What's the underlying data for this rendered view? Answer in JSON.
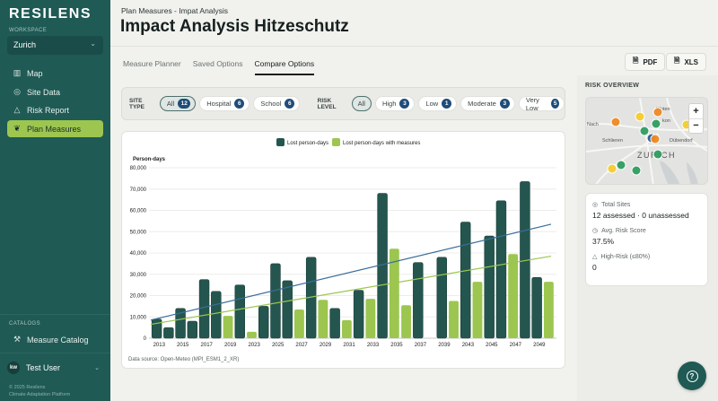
{
  "app": {
    "logo": "RESILENS"
  },
  "sidebar": {
    "workspace_label": "WORKSPACE",
    "workspace_value": "Zurich",
    "items": [
      {
        "label": "Map",
        "icon": "map-icon"
      },
      {
        "label": "Site Data",
        "icon": "location-pin-icon"
      },
      {
        "label": "Risk Report",
        "icon": "warning-triangle-icon"
      },
      {
        "label": "Plan Measures",
        "icon": "leaf-icon",
        "active": true
      }
    ],
    "catalog_label": "CATALOGS",
    "catalog_item": {
      "label": "Measure Catalog",
      "icon": "wrench-icon"
    },
    "user": {
      "initials": "kw",
      "name": "Test User"
    },
    "footer_line1": "© 2025 Resilens",
    "footer_line2": "Climate Adaptation Platform"
  },
  "header": {
    "breadcrumb": "Plan Measures - Impat Analysis",
    "title": "Impact Analysis Hitzeschutz",
    "tabs": [
      {
        "label": "Measure Planner",
        "active": false
      },
      {
        "label": "Saved Options",
        "active": false
      },
      {
        "label": "Compare Options",
        "active": true
      }
    ],
    "export_pdf": "PDF",
    "export_xls": "XLS"
  },
  "filters": {
    "site_type_label": "SITE TYPE",
    "site_type": [
      {
        "label": "All",
        "count": "12",
        "selected": true
      },
      {
        "label": "Hospital",
        "count": "6",
        "selected": false
      },
      {
        "label": "School",
        "count": "6",
        "selected": false
      }
    ],
    "risk_level_label": "RISK LEVEL",
    "risk_level": [
      {
        "label": "All",
        "selected": true
      },
      {
        "label": "High",
        "count": "3"
      },
      {
        "label": "Low",
        "count": "1"
      },
      {
        "label": "Moderate",
        "count": "3"
      },
      {
        "label": "Very Low",
        "count": "5"
      }
    ]
  },
  "chart_data": {
    "type": "bar",
    "title": "",
    "xlabel": "",
    "ylabel": "Person-days",
    "ylim": [
      0,
      80000
    ],
    "yticks": [
      0,
      10000,
      20000,
      30000,
      40000,
      50000,
      60000,
      70000,
      80000
    ],
    "ytick_labels": [
      "0",
      "10,000",
      "20,000",
      "30,000",
      "40,000",
      "50,000",
      "60,000",
      "70,000",
      "80,000"
    ],
    "grid": true,
    "legend_position": "top-right",
    "colors": {
      "lost": "#24564f",
      "with_measures": "#9cc64f",
      "trend_lost": "#3a6d9a",
      "trend_with_measures": "#9cc64f"
    },
    "series": [
      {
        "name": "Lost person-days",
        "key": "lost"
      },
      {
        "name": "Lost person-days with measures",
        "key": "with_measures"
      }
    ],
    "x_labels": [
      "2013",
      "2015",
      "2017",
      "2019",
      "2023",
      "2025",
      "2027",
      "2029",
      "2031",
      "2033",
      "2035",
      "2037",
      "2039",
      "2043",
      "2045",
      "2047",
      "2049"
    ],
    "bars": [
      {
        "series": "lost",
        "value": 9000
      },
      {
        "series": "lost",
        "value": 5000
      },
      {
        "series": "lost",
        "value": 14000
      },
      {
        "series": "lost",
        "value": 8000
      },
      {
        "series": "lost",
        "value": 27500
      },
      {
        "series": "lost",
        "value": 22000
      },
      {
        "series": "with_measures",
        "value": 10500
      },
      {
        "series": "lost",
        "value": 25000
      },
      {
        "series": "with_measures",
        "value": 3000
      },
      {
        "series": "lost",
        "value": 15000
      },
      {
        "series": "lost",
        "value": 35000
      },
      {
        "series": "lost",
        "value": 27000
      },
      {
        "series": "with_measures",
        "value": 13500
      },
      {
        "series": "lost",
        "value": 38000
      },
      {
        "series": "with_measures",
        "value": 18000
      },
      {
        "series": "lost",
        "value": 14000
      },
      {
        "series": "with_measures",
        "value": 8500
      },
      {
        "series": "lost",
        "value": 22500
      },
      {
        "series": "with_measures",
        "value": 18500
      },
      {
        "series": "lost",
        "value": 68000
      },
      {
        "series": "with_measures",
        "value": 42000
      },
      {
        "series": "with_measures",
        "value": 15500
      },
      {
        "series": "lost",
        "value": 35500
      },
      {
        "series": "gap",
        "value": 0
      },
      {
        "series": "lost",
        "value": 38000
      },
      {
        "series": "with_measures",
        "value": 17500
      },
      {
        "series": "lost",
        "value": 54500
      },
      {
        "series": "with_measures",
        "value": 26500
      },
      {
        "series": "lost",
        "value": 48000
      },
      {
        "series": "lost",
        "value": 64500
      },
      {
        "series": "with_measures",
        "value": 39500
      },
      {
        "series": "lost",
        "value": 73500
      },
      {
        "series": "lost",
        "value": 28500
      },
      {
        "series": "with_measures",
        "value": 26500
      }
    ],
    "trendlines": [
      {
        "series": "lost",
        "start": 8500,
        "end": 53500
      },
      {
        "series": "with_measures",
        "start": 6500,
        "end": 38500
      }
    ],
    "source": "Data source: Open-Meteo (MPI_ESM1_2_XR)"
  },
  "risk_overview": {
    "title": "RISK OVERVIEW",
    "map_labels": [
      "Kloten",
      "Nach",
      "Schlieren",
      "Dübendorf",
      "ZURICH",
      "kon"
    ],
    "markers": [
      {
        "risk": "high",
        "color": "#f08a24"
      },
      {
        "risk": "moderate",
        "color": "#f5cd2e"
      },
      {
        "risk": "high",
        "color": "#f08a24"
      },
      {
        "risk": "very-low",
        "color": "#2f9e5f"
      },
      {
        "risk": "moderate",
        "color": "#f5cd2e"
      },
      {
        "risk": "very-low",
        "color": "#2f9e5f"
      },
      {
        "risk": "low",
        "color": "#2b5f8a"
      },
      {
        "risk": "high",
        "color": "#f08a24"
      },
      {
        "risk": "very-low",
        "color": "#2f9e5f"
      },
      {
        "risk": "very-low",
        "color": "#2f9e5f"
      },
      {
        "risk": "moderate",
        "color": "#f5cd2e"
      },
      {
        "risk": "very-low",
        "color": "#2f9e5f"
      }
    ],
    "zoom_in": "+",
    "zoom_out": "−",
    "stats": [
      {
        "label": "Total Sites",
        "value": "12 assessed · 0 unassessed",
        "icon": "target-icon"
      },
      {
        "label": "Avg. Risk Score",
        "value": "37.5%",
        "icon": "gauge-icon"
      },
      {
        "label": "High-Risk (≤80%)",
        "value": "0",
        "icon": "warning-triangle-icon"
      }
    ]
  },
  "help": {
    "icon": "help-icon"
  }
}
